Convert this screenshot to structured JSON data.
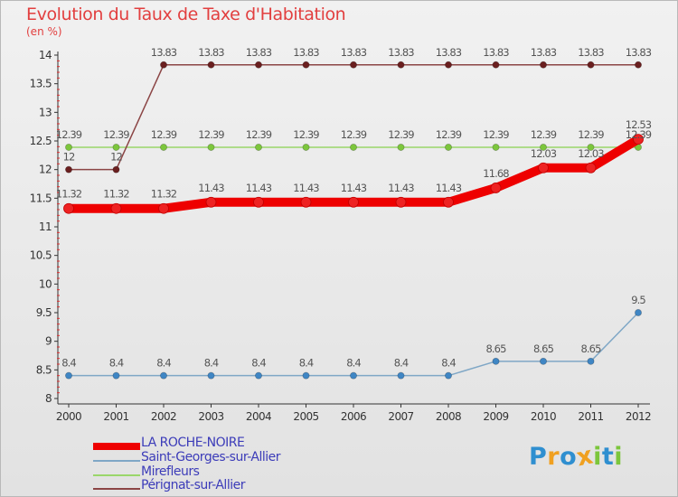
{
  "chart_data": {
    "type": "line",
    "title": "Evolution du Taux de Taxe d'Habitation",
    "ylabel": "(en %)",
    "xlabel": "",
    "categories": [
      "2000",
      "2001",
      "2002",
      "2003",
      "2004",
      "2005",
      "2006",
      "2007",
      "2008",
      "2009",
      "2010",
      "2011",
      "2012"
    ],
    "ylim": [
      8,
      14
    ],
    "yticks": [
      "8",
      "8.5",
      "9",
      "9.5",
      "10",
      "10.5",
      "11",
      "11.5",
      "12",
      "12.5",
      "13",
      "13.5",
      "14"
    ],
    "grid": false,
    "legend_position": "bottom-left",
    "series": [
      {
        "name": "LA ROCHE-NOIRE",
        "color": "#ee0000",
        "marker_color": "#ee2222",
        "emphasis": "thick",
        "values": [
          11.32,
          11.32,
          11.32,
          11.43,
          11.43,
          11.43,
          11.43,
          11.43,
          11.43,
          11.68,
          12.03,
          12.03,
          12.53
        ],
        "labels": [
          "11.32",
          "11.32",
          "11.32",
          "11.43",
          "11.43",
          "11.43",
          "11.43",
          "11.43",
          "11.43",
          "11.68",
          "12.03",
          "12.03",
          "12.53"
        ]
      },
      {
        "name": "Saint-Georges-sur-Allier",
        "color": "#7fa7c6",
        "marker_color": "#3f86c4",
        "emphasis": "thin",
        "values": [
          8.4,
          8.4,
          8.4,
          8.4,
          8.4,
          8.4,
          8.4,
          8.4,
          8.4,
          8.65,
          8.65,
          8.65,
          9.5
        ],
        "labels": [
          "8.4",
          "8.4",
          "8.4",
          "8.4",
          "8.4",
          "8.4",
          "8.4",
          "8.4",
          "8.4",
          "8.65",
          "8.65",
          "8.65",
          "9.5"
        ]
      },
      {
        "name": "Mirefleurs",
        "color": "#9ad66a",
        "marker_color": "#7cc63c",
        "emphasis": "thin",
        "values": [
          12.39,
          12.39,
          12.39,
          12.39,
          12.39,
          12.39,
          12.39,
          12.39,
          12.39,
          12.39,
          12.39,
          12.39,
          12.39
        ],
        "labels": [
          "12.39",
          "12.39",
          "12.39",
          "12.39",
          "12.39",
          "12.39",
          "12.39",
          "12.39",
          "12.39",
          "12.39",
          "12.39",
          "12.39",
          "12.39"
        ]
      },
      {
        "name": "Pérignat-sur-Allier",
        "color": "#8b4545",
        "marker_color": "#6a1f1f",
        "emphasis": "thin",
        "values": [
          12,
          12,
          13.83,
          13.83,
          13.83,
          13.83,
          13.83,
          13.83,
          13.83,
          13.83,
          13.83,
          13.83,
          13.83
        ],
        "labels": [
          "12",
          "12",
          "13.83",
          "13.83",
          "13.83",
          "13.83",
          "13.83",
          "13.83",
          "13.83",
          "13.83",
          "13.83",
          "13.83",
          "13.83"
        ]
      }
    ]
  },
  "header": {
    "title": "Evolution du Taux de Taxe d'Habitation",
    "unit": "(en %)"
  },
  "legend": {
    "items": [
      "LA ROCHE-NOIRE",
      "Saint-Georges-sur-Allier",
      "Mirefleurs",
      "Pérignat-sur-Allier"
    ]
  },
  "logo": {
    "text": "Proxiti",
    "letters": [
      {
        "char": "P",
        "color": "#2f8fd0"
      },
      {
        "char": "r",
        "color": "#f0a020"
      },
      {
        "char": "o",
        "color": "#2f8fd0"
      },
      {
        "char": "x",
        "color": "#f0a020"
      },
      {
        "char": "i",
        "color": "#7cc63c"
      },
      {
        "char": "t",
        "color": "#2f8fd0"
      },
      {
        "char": "i",
        "color": "#7cc63c"
      }
    ]
  }
}
